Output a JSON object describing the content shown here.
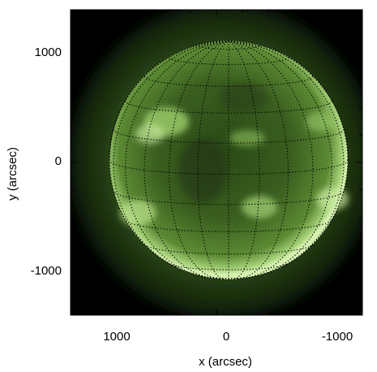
{
  "figure": {
    "xlabel": "x (arcsec)",
    "ylabel": "y (arcsec)",
    "x_tick_labels": [
      "1000",
      "0",
      "-1000"
    ],
    "y_tick_labels": [
      "1000",
      "0",
      "-1000"
    ],
    "x_tick_values": [
      1000,
      0,
      -1000
    ],
    "y_tick_values": [
      1000,
      0,
      -1000
    ],
    "x_range": [
      1400,
      -1400
    ],
    "y_range": [
      -1400,
      1400
    ],
    "solar_radius_arcsec": 1040,
    "colors": {
      "background": "#000000",
      "disk_dark": "#1c3210",
      "disk_mid": "#3b5f20",
      "limb_bright": "#c9e8a0",
      "corona": "#4d7b2e",
      "grid": "#000000"
    }
  }
}
